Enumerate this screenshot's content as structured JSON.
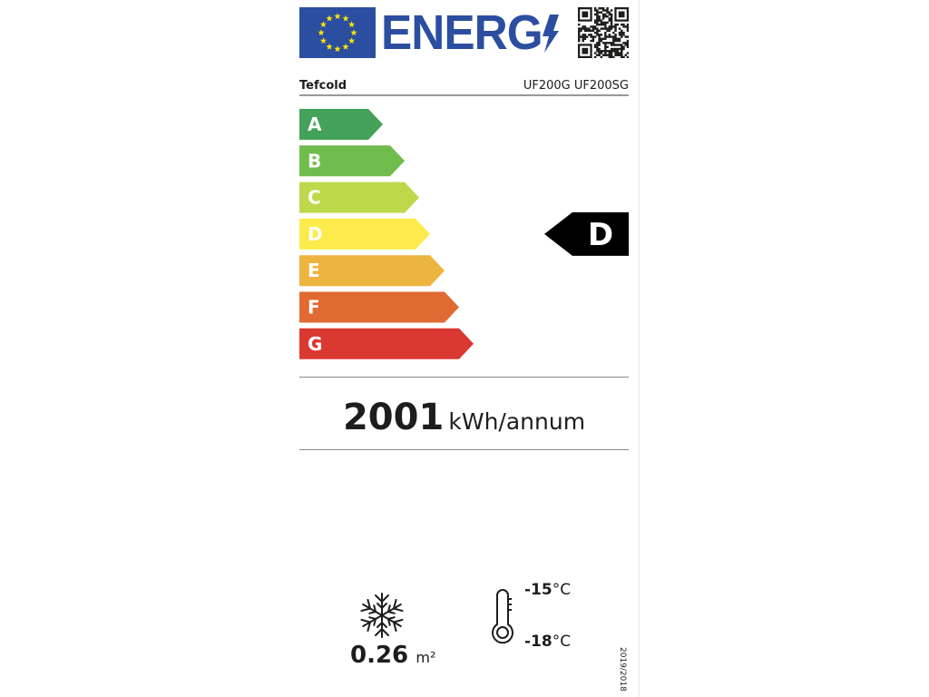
{
  "header": {
    "logo_text": "ENERG",
    "flag_color": "#2b4ea0",
    "star_color": "#ffe500",
    "qr_icon": "qr-code"
  },
  "supplier": "Tefcold",
  "model": "UF200G UF200SG",
  "scale": {
    "classes": [
      {
        "label": "A",
        "color": "#43a15a"
      },
      {
        "label": "B",
        "color": "#70bc4d"
      },
      {
        "label": "C",
        "color": "#bdd94b"
      },
      {
        "label": "D",
        "color": "#fdeb4b"
      },
      {
        "label": "E",
        "color": "#eeb440"
      },
      {
        "label": "F",
        "color": "#e16a32"
      },
      {
        "label": "G",
        "color": "#db3832"
      }
    ],
    "rating": "D",
    "rating_color": "#000000"
  },
  "energy": {
    "value": "2001",
    "unit": "kWh/annum"
  },
  "display_area": {
    "icon": "snowflake",
    "value": "0.26",
    "unit": "m²"
  },
  "temperature": {
    "icon": "thermometer",
    "high": "-15",
    "low": "-18",
    "unit": "°C"
  },
  "regulation": "2019/2018"
}
